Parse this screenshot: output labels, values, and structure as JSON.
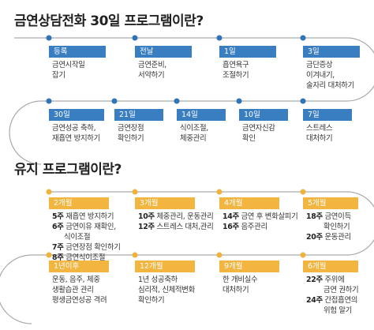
{
  "colors": {
    "blue": "#3a7ec2",
    "orange": "#f2b540",
    "path_gray": "#aaaaaa",
    "text": "#333333"
  },
  "program30": {
    "title": "금연상담전화 30일 프로그램이란?",
    "row1": [
      {
        "label": "등록",
        "desc": [
          "금연시작일",
          "잡기"
        ]
      },
      {
        "label": "전날",
        "desc": [
          "금연준비,",
          "서약하기"
        ]
      },
      {
        "label": "1일",
        "desc": [
          "흡연욕구",
          "조절하기"
        ]
      },
      {
        "label": "3일",
        "desc": [
          "금단증상",
          "이겨내기,",
          "술자리 대처하기"
        ]
      }
    ],
    "row2": [
      {
        "label": "30일",
        "desc": [
          "금연성공 축하,",
          "재흡연 방지하기"
        ]
      },
      {
        "label": "21일",
        "desc": [
          "금연장점",
          "확인하기"
        ]
      },
      {
        "label": "14일",
        "desc": [
          "식이조절,",
          "체중관리"
        ]
      },
      {
        "label": "10일",
        "desc": [
          "금연자신감",
          "확인"
        ]
      },
      {
        "label": "7일",
        "desc": [
          "스트레스",
          "대처하기"
        ]
      }
    ]
  },
  "maintenance": {
    "title": "유지 프로그램이란?",
    "row1": [
      {
        "label": "2개월",
        "lines": [
          {
            "week": "5주",
            "text": "재흡연 방지하기"
          },
          {
            "week": "6주",
            "text": "금연이유 재확인,"
          },
          {
            "week": "",
            "text": "식이조절"
          },
          {
            "week": "7주",
            "text": "금연장점 확인하기"
          },
          {
            "week": "8주",
            "text": "금연식이조절"
          }
        ]
      },
      {
        "label": "3개월",
        "lines": [
          {
            "week": "10주",
            "text": "체중관리, 운동관리"
          },
          {
            "week": "12주",
            "text": "스트레스 대처,관리"
          }
        ]
      },
      {
        "label": "4개월",
        "lines": [
          {
            "week": "14주",
            "text": "금연 후 변화살피기"
          },
          {
            "week": "16주",
            "text": "음주관리"
          }
        ]
      },
      {
        "label": "5개월",
        "lines": [
          {
            "week": "18주",
            "text": "금연이득"
          },
          {
            "week": "",
            "text": "확인하기"
          },
          {
            "week": "20주",
            "text": "운동관리"
          }
        ]
      }
    ],
    "row2": [
      {
        "label": "1년이후",
        "lines": [
          {
            "week": "",
            "text": "운동, 음주, 체중"
          },
          {
            "week": "",
            "text": "생활습관 관리"
          },
          {
            "week": "",
            "text": "평생금연성공 격려"
          }
        ]
      },
      {
        "label": "12개월",
        "lines": [
          {
            "week": "",
            "text": "1년 성공축하"
          },
          {
            "week": "",
            "text": "심리적, 신체적변화"
          },
          {
            "week": "",
            "text": "확인하기"
          }
        ]
      },
      {
        "label": "9개월",
        "lines": [
          {
            "week": "",
            "text": "한 개비실수"
          },
          {
            "week": "",
            "text": "대처하기"
          }
        ]
      },
      {
        "label": "6개월",
        "lines": [
          {
            "week": "22주",
            "text": "주위에"
          },
          {
            "week": "",
            "text": "금연 권하기"
          },
          {
            "week": "24주",
            "text": "간접흡연의"
          },
          {
            "week": "",
            "text": "위험 알기"
          }
        ]
      }
    ]
  }
}
